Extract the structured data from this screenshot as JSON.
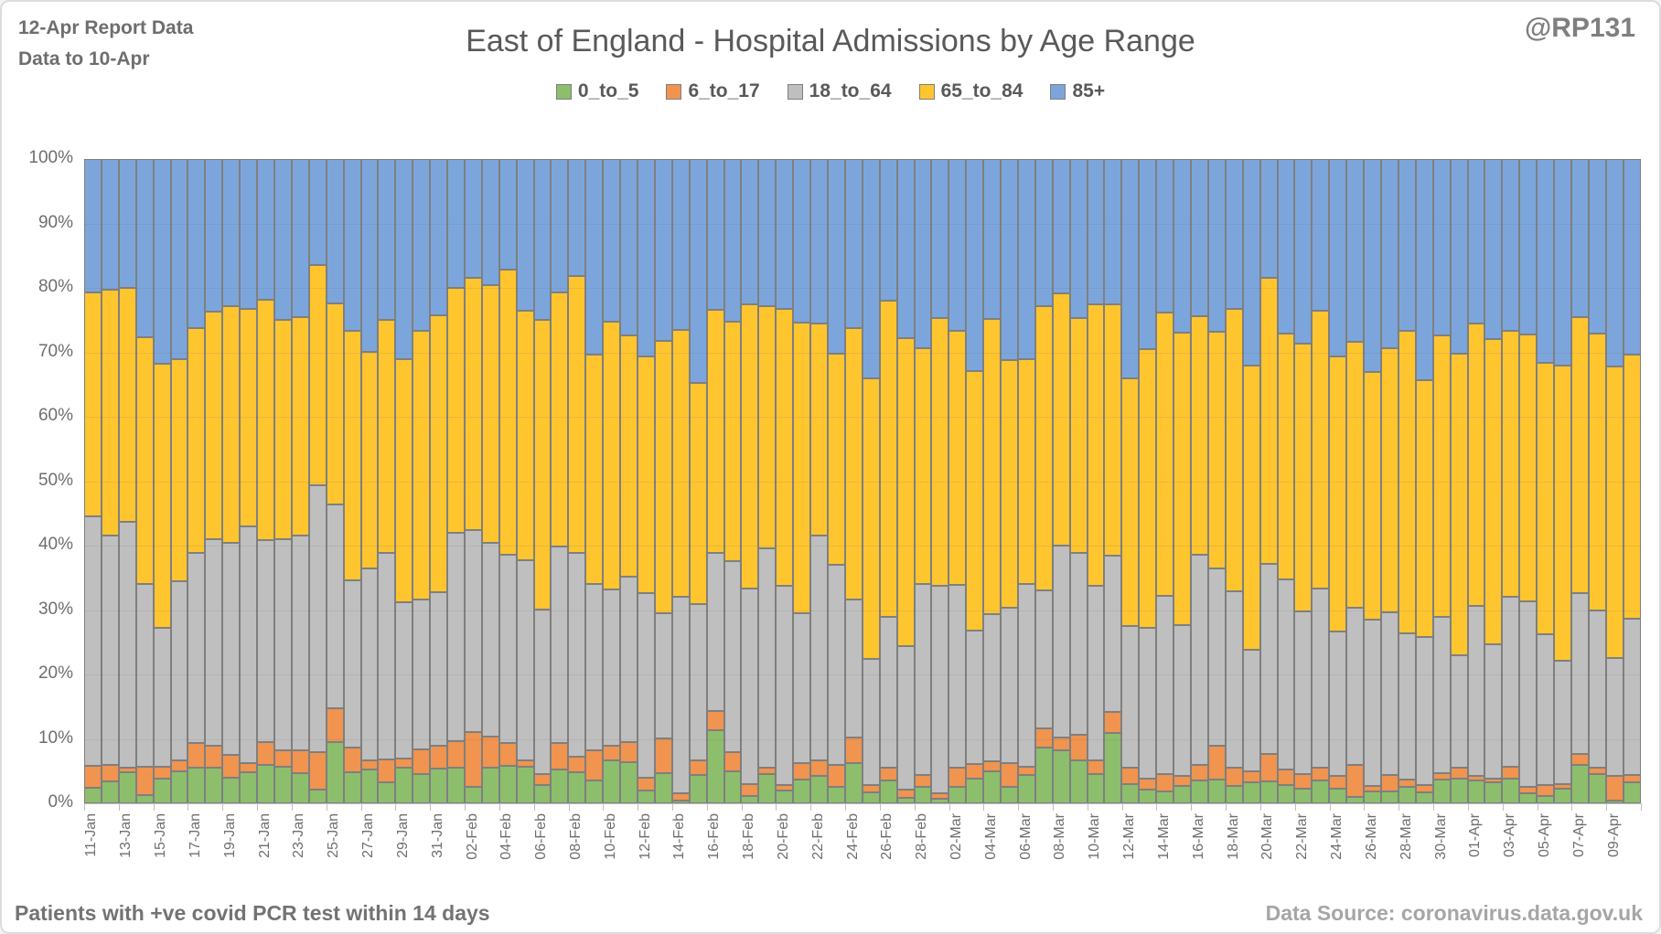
{
  "header": {
    "report_line1": "12-Apr Report Data",
    "report_line2": "Data to 10-Apr",
    "title": "East of England - Hospital Admissions by Age Range",
    "handle": "@RP131"
  },
  "footer": {
    "left": "Patients with  +ve covid PCR test within 14 days",
    "right": "Data Source: coronavirus.data.gov.uk"
  },
  "colors": {
    "green": "#8dbe6c",
    "orange": "#f0944f",
    "gray": "#bfbfbf",
    "yellow": "#ffc52f",
    "blue": "#7ca6db",
    "border": "#7f7f7f",
    "axis": "#bfbfbf",
    "text": "#6e6e6e",
    "title": "#595959"
  },
  "chart_data": {
    "type": "bar",
    "stacked": true,
    "percent_stacked": true,
    "title": "East of England - Hospital Admissions by Age Range",
    "xlabel": "",
    "ylabel": "",
    "ylim": [
      0,
      100
    ],
    "yticks": [
      "100%",
      "90%",
      "80%",
      "70%",
      "60%",
      "50%",
      "40%",
      "30%",
      "20%",
      "10%",
      "0%"
    ],
    "x_tick_labels_every": 2,
    "legend_position": "top",
    "categories": [
      "11-Jan",
      "12-Jan",
      "13-Jan",
      "14-Jan",
      "15-Jan",
      "16-Jan",
      "17-Jan",
      "18-Jan",
      "19-Jan",
      "20-Jan",
      "21-Jan",
      "22-Jan",
      "23-Jan",
      "24-Jan",
      "25-Jan",
      "26-Jan",
      "27-Jan",
      "28-Jan",
      "29-Jan",
      "30-Jan",
      "31-Jan",
      "01-Feb",
      "02-Feb",
      "03-Feb",
      "04-Feb",
      "05-Feb",
      "06-Feb",
      "07-Feb",
      "08-Feb",
      "09-Feb",
      "10-Feb",
      "11-Feb",
      "12-Feb",
      "13-Feb",
      "14-Feb",
      "15-Feb",
      "16-Feb",
      "17-Feb",
      "18-Feb",
      "19-Feb",
      "20-Feb",
      "21-Feb",
      "22-Feb",
      "23-Feb",
      "24-Feb",
      "25-Feb",
      "26-Feb",
      "27-Feb",
      "28-Feb",
      "01-Mar",
      "02-Mar",
      "03-Mar",
      "04-Mar",
      "05-Mar",
      "06-Mar",
      "07-Mar",
      "08-Mar",
      "09-Mar",
      "10-Mar",
      "11-Mar",
      "12-Mar",
      "13-Mar",
      "14-Mar",
      "15-Mar",
      "16-Mar",
      "17-Mar",
      "18-Mar",
      "19-Mar",
      "20-Mar",
      "21-Mar",
      "22-Mar",
      "23-Mar",
      "24-Mar",
      "25-Mar",
      "26-Mar",
      "27-Mar",
      "28-Mar",
      "29-Mar",
      "30-Mar",
      "31-Mar",
      "01-Apr",
      "02-Apr",
      "03-Apr",
      "04-Apr",
      "05-Apr",
      "06-Apr",
      "07-Apr",
      "08-Apr",
      "09-Apr",
      "10-Apr"
    ],
    "series": [
      {
        "name": "0_to_5",
        "color_key": "green",
        "values": [
          2.4,
          3.4,
          4.8,
          1.3,
          3.9,
          5.0,
          5.5,
          5.5,
          4.0,
          4.8,
          6.0,
          5.7,
          4.7,
          2.1,
          9.5,
          4.8,
          5.2,
          3.2,
          5.6,
          4.6,
          5.4,
          5.5,
          2.5,
          5.5,
          5.8,
          5.7,
          2.8,
          5.2,
          4.8,
          3.5,
          6.6,
          6.4,
          2.0,
          4.7,
          0.4,
          4.4,
          11.3,
          5.0,
          1.2,
          4.6,
          2.0,
          3.7,
          4.2,
          2.6,
          6.2,
          1.7,
          3.5,
          0.8,
          2.5,
          0.7,
          2.5,
          3.9,
          4.9,
          2.6,
          4.4,
          8.7,
          8.2,
          6.7,
          4.6,
          10.9,
          3.0,
          2.1,
          1.9,
          2.7,
          3.5,
          3.7,
          2.7,
          3.2,
          3.4,
          2.8,
          2.3,
          3.5,
          2.3,
          1.0,
          1.9,
          1.9,
          2.5,
          1.7,
          3.7,
          3.9,
          3.5,
          3.2,
          3.9,
          1.6,
          1.2,
          2.3,
          6.0,
          4.5,
          0.4,
          3.3
        ]
      },
      {
        "name": "6_to_17",
        "color_key": "orange",
        "values": [
          3.4,
          2.6,
          0.8,
          4.4,
          1.8,
          1.7,
          3.8,
          3.5,
          3.5,
          1.5,
          3.5,
          2.5,
          3.5,
          5.8,
          5.2,
          3.9,
          1.5,
          3.6,
          1.3,
          3.8,
          3.5,
          4.2,
          8.5,
          4.8,
          3.6,
          0.9,
          1.8,
          4.1,
          2.4,
          4.7,
          2.3,
          3.1,
          2.0,
          5.4,
          1.2,
          2.2,
          3.0,
          2.9,
          1.8,
          0.9,
          0.8,
          2.5,
          2.5,
          3.3,
          4.0,
          1.1,
          2.0,
          1.3,
          1.9,
          0.9,
          3.0,
          2.2,
          1.6,
          3.7,
          1.3,
          3.0,
          2.0,
          4.0,
          2.0,
          3.3,
          2.5,
          1.8,
          2.7,
          1.5,
          2.4,
          5.2,
          2.8,
          1.8,
          4.3,
          2.4,
          2.3,
          2.0,
          1.9,
          4.9,
          0.8,
          2.5,
          1.2,
          1.1,
          1.0,
          1.6,
          0.8,
          0.7,
          1.8,
          1.0,
          1.7,
          0.7,
          1.6,
          1.0,
          3.9,
          1.1
        ]
      },
      {
        "name": "18_to_64",
        "color_key": "gray",
        "values": [
          38.7,
          35.5,
          38.1,
          28.3,
          21.6,
          27.8,
          29.5,
          32.0,
          33.0,
          36.7,
          31.3,
          32.8,
          33.3,
          41.4,
          31.7,
          25.9,
          29.7,
          32.0,
          24.3,
          23.2,
          23.9,
          32.3,
          31.4,
          30.1,
          29.2,
          31.1,
          25.5,
          30.6,
          31.7,
          25.9,
          24.3,
          25.7,
          28.6,
          19.4,
          30.4,
          24.3,
          24.6,
          29.7,
          30.3,
          34.1,
          30.9,
          23.3,
          34.8,
          31.1,
          21.5,
          19.6,
          23.4,
          22.3,
          29.7,
          32.1,
          28.4,
          20.7,
          22.9,
          24.1,
          28.4,
          21.4,
          29.8,
          28.1,
          27.2,
          24.3,
          22.0,
          23.3,
          27.6,
          23.4,
          32.7,
          27.5,
          27.4,
          18.9,
          29.5,
          29.6,
          25.2,
          27.9,
          22.5,
          24.4,
          25.8,
          25.3,
          22.7,
          23.0,
          24.3,
          17.5,
          26.4,
          20.8,
          26.4,
          28.8,
          23.3,
          19.2,
          25.0,
          24.5,
          18.2,
          24.3
        ]
      },
      {
        "name": "65_to_84",
        "color_key": "yellow",
        "values": [
          34.8,
          38.2,
          36.3,
          38.3,
          40.9,
          34.5,
          35.0,
          35.3,
          36.7,
          33.8,
          37.4,
          34.0,
          34.0,
          34.2,
          31.2,
          38.8,
          33.7,
          36.3,
          37.7,
          41.7,
          42.9,
          38.0,
          39.1,
          40.1,
          44.2,
          38.8,
          44.9,
          39.4,
          42.9,
          35.5,
          41.5,
          37.4,
          36.8,
          42.3,
          41.5,
          34.3,
          37.7,
          37.1,
          44.1,
          37.5,
          43.1,
          45.1,
          33.0,
          32.8,
          42.1,
          43.6,
          49.1,
          47.8,
          36.6,
          41.6,
          39.5,
          40.3,
          45.8,
          38.4,
          34.8,
          44.0,
          39.2,
          36.5,
          43.6,
          39.0,
          38.5,
          43.3,
          44.0,
          45.5,
          37.0,
          36.8,
          43.9,
          44.0,
          44.4,
          38.1,
          41.5,
          43.1,
          42.6,
          41.4,
          38.5,
          41.0,
          47.0,
          39.9,
          43.6,
          46.8,
          43.8,
          47.3,
          41.2,
          41.4,
          42.2,
          45.8,
          42.8,
          42.9,
          45.3,
          40.9
        ]
      },
      {
        "name": "85+",
        "color_key": "blue",
        "values": [
          20.7,
          20.3,
          20.0,
          27.7,
          31.8,
          31.0,
          26.2,
          23.7,
          22.8,
          23.2,
          21.8,
          25.0,
          24.5,
          16.5,
          22.4,
          26.6,
          29.9,
          24.9,
          31.1,
          26.7,
          24.3,
          20.0,
          18.5,
          19.5,
          17.2,
          23.5,
          25.0,
          20.7,
          18.2,
          30.4,
          25.3,
          27.4,
          30.6,
          28.2,
          26.5,
          34.8,
          23.4,
          25.3,
          22.6,
          22.9,
          23.2,
          25.4,
          25.5,
          30.2,
          26.2,
          34.0,
          22.0,
          27.8,
          29.3,
          24.7,
          26.6,
          32.9,
          24.8,
          31.2,
          31.1,
          22.9,
          20.8,
          24.7,
          22.6,
          22.5,
          34.0,
          29.5,
          23.8,
          26.9,
          24.4,
          26.8,
          23.2,
          32.1,
          18.4,
          27.1,
          28.7,
          23.5,
          30.7,
          28.3,
          33.0,
          29.3,
          26.6,
          34.3,
          27.4,
          30.2,
          25.5,
          28.0,
          26.7,
          27.2,
          31.6,
          32.0,
          24.6,
          27.1,
          32.2,
          30.4
        ]
      }
    ]
  }
}
